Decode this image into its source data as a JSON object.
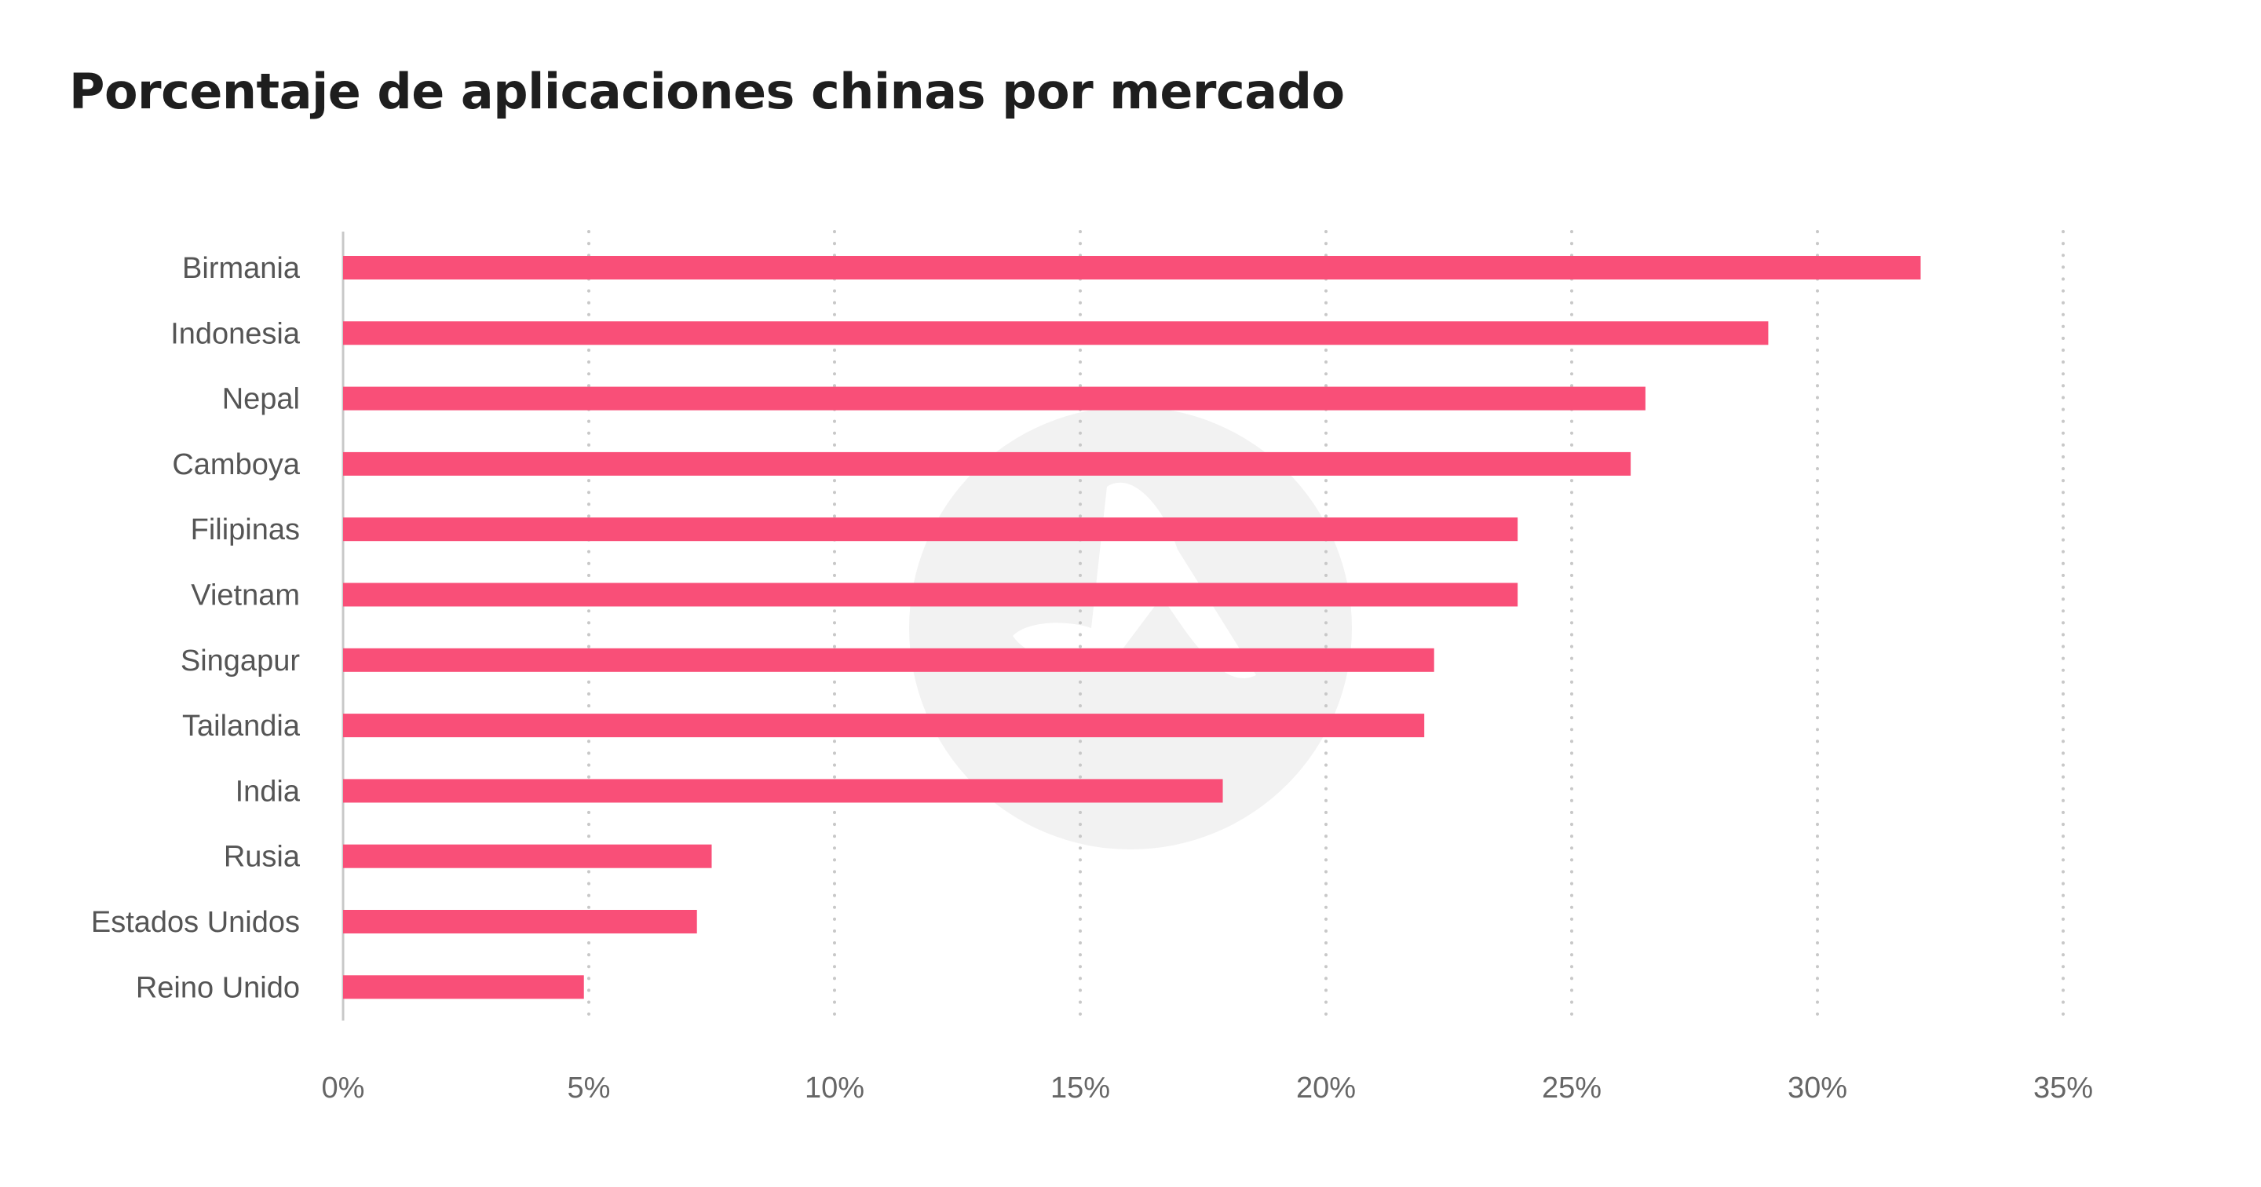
{
  "chart_data": {
    "type": "bar",
    "orientation": "horizontal",
    "title": "Porcentaje de aplicaciones chinas por mercado",
    "categories": [
      "Birmania",
      "Indonesia",
      "Nepal",
      "Camboya",
      "Filipinas",
      "Vietnam",
      "Singapur",
      "Tailandia",
      "India",
      "Rusia",
      "Estados Unidos",
      "Reino Unido"
    ],
    "values": [
      32.1,
      29.0,
      26.5,
      26.2,
      23.9,
      23.9,
      22.2,
      22.0,
      17.9,
      7.5,
      7.2,
      4.9
    ],
    "xlim": [
      0,
      35
    ],
    "xticks": [
      0,
      5,
      10,
      15,
      20,
      25,
      30,
      35
    ],
    "tick_format": "%",
    "grid": "vertical dotted",
    "bar_color": "#f94f78",
    "grid_color": "#c8c8c8",
    "axis_color": "#c8c8c8",
    "watermark_color": "#f2f2f2"
  }
}
